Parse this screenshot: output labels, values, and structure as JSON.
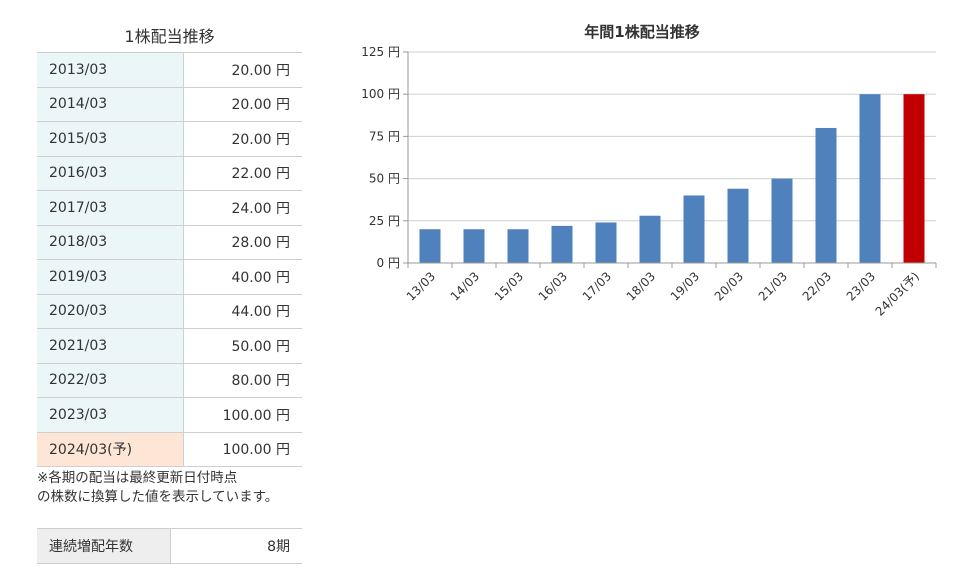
{
  "left_table": {
    "title": "1株配当推移",
    "rows": [
      {
        "period": "2013/03",
        "amount": "20.00 円",
        "forecast": false
      },
      {
        "period": "2014/03",
        "amount": "20.00 円",
        "forecast": false
      },
      {
        "period": "2015/03",
        "amount": "20.00 円",
        "forecast": false
      },
      {
        "period": "2016/03",
        "amount": "22.00 円",
        "forecast": false
      },
      {
        "period": "2017/03",
        "amount": "24.00 円",
        "forecast": false
      },
      {
        "period": "2018/03",
        "amount": "28.00 円",
        "forecast": false
      },
      {
        "period": "2019/03",
        "amount": "40.00 円",
        "forecast": false
      },
      {
        "period": "2020/03",
        "amount": "44.00 円",
        "forecast": false
      },
      {
        "period": "2021/03",
        "amount": "50.00 円",
        "forecast": false
      },
      {
        "period": "2022/03",
        "amount": "80.00 円",
        "forecast": false
      },
      {
        "period": "2023/03",
        "amount": "100.00 円",
        "forecast": false
      },
      {
        "period": "2024/03(予)",
        "amount": "100.00 円",
        "forecast": true
      }
    ],
    "note_line1": "※各期の配当は最終更新日付時点",
    "note_line2": "の株数に換算した値を表示しています。"
  },
  "streak": {
    "label": "連続増配年数",
    "value": "8期"
  },
  "colors": {
    "bar_actual": "#4f81bd",
    "bar_forecast": "#c00000",
    "period_bg": "#eaf6f7",
    "forecast_bg": "#fde6d6",
    "gridline": "#d0d0d0"
  },
  "chart_data": {
    "type": "bar",
    "title": "年間1株配当推移",
    "categories": [
      "13/03",
      "14/03",
      "15/03",
      "16/03",
      "17/03",
      "18/03",
      "19/03",
      "20/03",
      "21/03",
      "22/03",
      "23/03",
      "24/03(予)"
    ],
    "values": [
      20,
      20,
      20,
      22,
      24,
      28,
      40,
      44,
      50,
      80,
      100,
      100
    ],
    "forecast_index": 11,
    "ylim": [
      0,
      125
    ],
    "yticks": [
      0,
      25,
      50,
      75,
      100,
      125
    ],
    "ytick_labels": [
      "0 円",
      "25 円",
      "50 円",
      "75 円",
      "100 円",
      "125 円"
    ],
    "grid": true,
    "xlabel": "",
    "ylabel": ""
  }
}
